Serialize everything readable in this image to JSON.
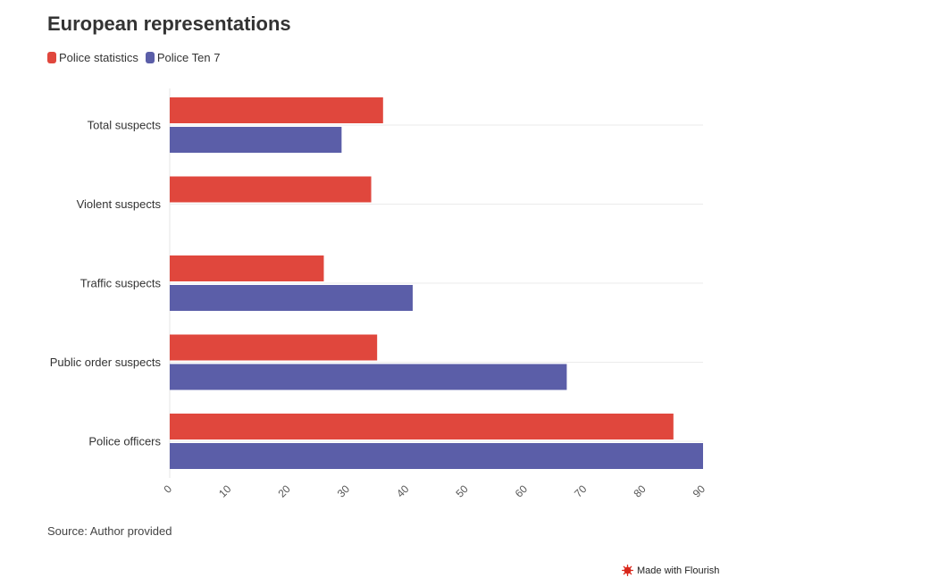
{
  "title": "European representations",
  "source": "Source: Author provided",
  "credit": "Made with Flourish",
  "colors": {
    "police_statistics": "#e0473d",
    "police_ten_7": "#5b5ea8",
    "grid": "#ebebeb",
    "text": "#333333"
  },
  "legend": [
    {
      "label": "Police statistics",
      "color": "#e0473d"
    },
    {
      "label": "Police Ten 7",
      "color": "#5b5ea8"
    }
  ],
  "chart_data": {
    "type": "bar",
    "orientation": "horizontal",
    "title": "European representations",
    "categories": [
      "Total suspects",
      "Violent suspects",
      "Traffic suspects",
      "Public order suspects",
      "Police officers"
    ],
    "series": [
      {
        "name": "Police statistics",
        "values": [
          36,
          34,
          26,
          35,
          85
        ]
      },
      {
        "name": "Police Ten 7",
        "values": [
          29,
          0,
          41,
          67,
          90
        ]
      }
    ],
    "xlim": [
      0,
      90
    ],
    "xticks": [
      0,
      10,
      20,
      30,
      40,
      50,
      60,
      70,
      80,
      90
    ],
    "xlabel": "",
    "ylabel": "",
    "grid": true,
    "legend_position": "top-left"
  }
}
